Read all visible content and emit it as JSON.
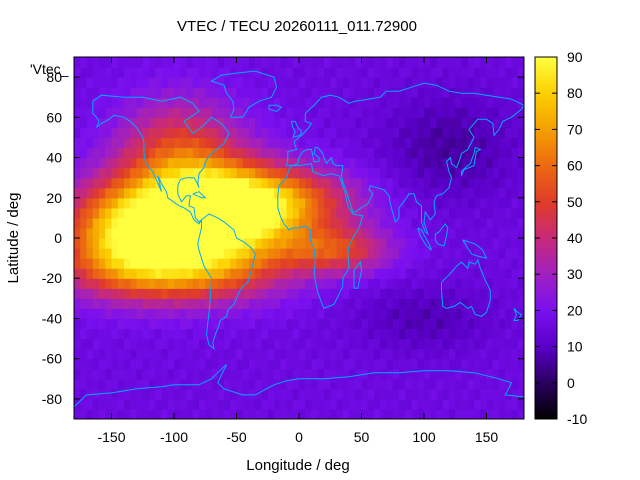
{
  "chart_data": {
    "type": "heatmap",
    "title": "VTEC / TECU 20260111_011.72900",
    "xlabel": "Longitude / deg",
    "ylabel": "Latitude / deg",
    "xlim": [
      -180,
      180
    ],
    "ylim": [
      -90,
      90
    ],
    "x_ticks": [
      -150,
      -100,
      -50,
      0,
      50,
      100,
      150
    ],
    "y_ticks": [
      -80,
      -60,
      -40,
      -20,
      0,
      20,
      40,
      60,
      80
    ],
    "colorbar": {
      "range": [
        -10,
        90
      ],
      "ticks": [
        -10,
        0,
        10,
        20,
        30,
        40,
        50,
        60,
        70,
        80,
        90
      ]
    },
    "series_label": "'Vtec_",
    "grid_resolution_deg": 5,
    "background_level": 16,
    "field_features": [
      {
        "lon": -65,
        "lat": 10,
        "value": 78,
        "sigma_lon": 45,
        "sigma_lat": 17
      },
      {
        "lon": -140,
        "lat": 5,
        "value": 68,
        "sigma_lon": 35,
        "sigma_lat": 16
      },
      {
        "lon": -30,
        "lat": 18,
        "value": 60,
        "sigma_lon": 50,
        "sigma_lat": 12
      },
      {
        "lon": -95,
        "lat": 40,
        "value": 52,
        "sigma_lon": 35,
        "sigma_lat": 20
      },
      {
        "lon": -100,
        "lat": -15,
        "value": 62,
        "sigma_lon": 55,
        "sigma_lat": 12
      },
      {
        "lon": 30,
        "lat": -6,
        "value": 48,
        "sigma_lon": 30,
        "sigma_lat": 8
      },
      {
        "lon": 120,
        "lat": 45,
        "value": 6,
        "sigma_lon": 40,
        "sigma_lat": 20
      },
      {
        "lon": 100,
        "lat": -40,
        "value": 8,
        "sigma_lon": 40,
        "sigma_lat": 12
      }
    ],
    "coastline_color": "#00aaff"
  }
}
